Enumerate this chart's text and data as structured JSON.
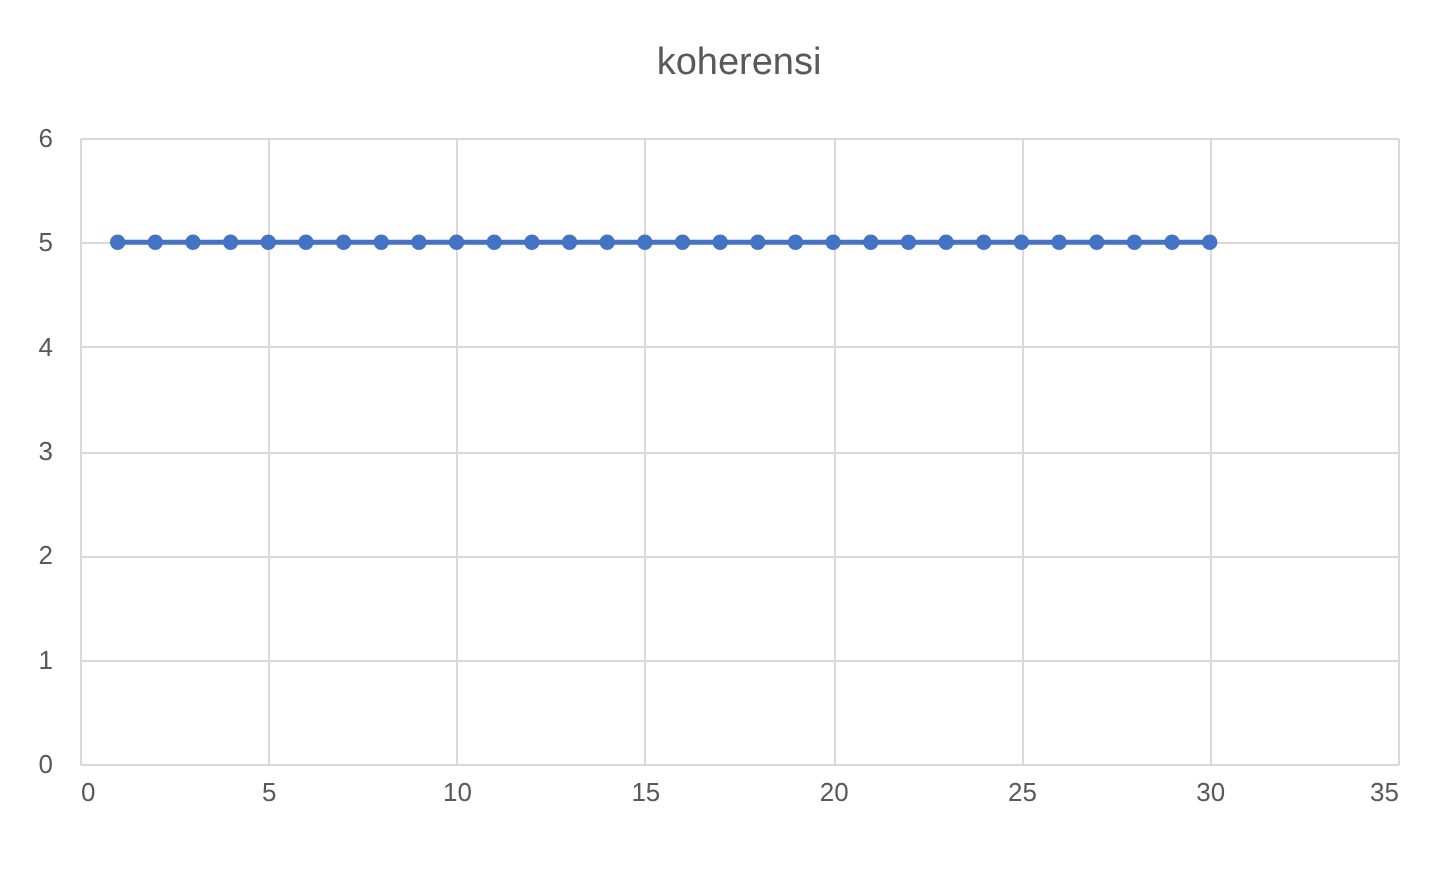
{
  "chart_data": {
    "type": "line",
    "title": "koherensi",
    "x": [
      1,
      2,
      3,
      4,
      5,
      6,
      7,
      8,
      9,
      10,
      11,
      12,
      13,
      14,
      15,
      16,
      17,
      18,
      19,
      20,
      21,
      22,
      23,
      24,
      25,
      26,
      27,
      28,
      29,
      30
    ],
    "series": [
      {
        "color": "#4472c4",
        "values": [
          5,
          5,
          5,
          5,
          5,
          5,
          5,
          5,
          5,
          5,
          5,
          5,
          5,
          5,
          5,
          5,
          5,
          5,
          5,
          5,
          5,
          5,
          5,
          5,
          5,
          5,
          5,
          5,
          5,
          5
        ]
      }
    ],
    "xlim": [
      0,
      35
    ],
    "xticks": [
      0,
      5,
      10,
      15,
      20,
      25,
      30,
      35
    ],
    "ylim": [
      0,
      6
    ],
    "yticks": [
      0,
      1,
      2,
      3,
      4,
      5,
      6
    ],
    "grid": true,
    "marker": "circle",
    "line_style": "solid"
  }
}
